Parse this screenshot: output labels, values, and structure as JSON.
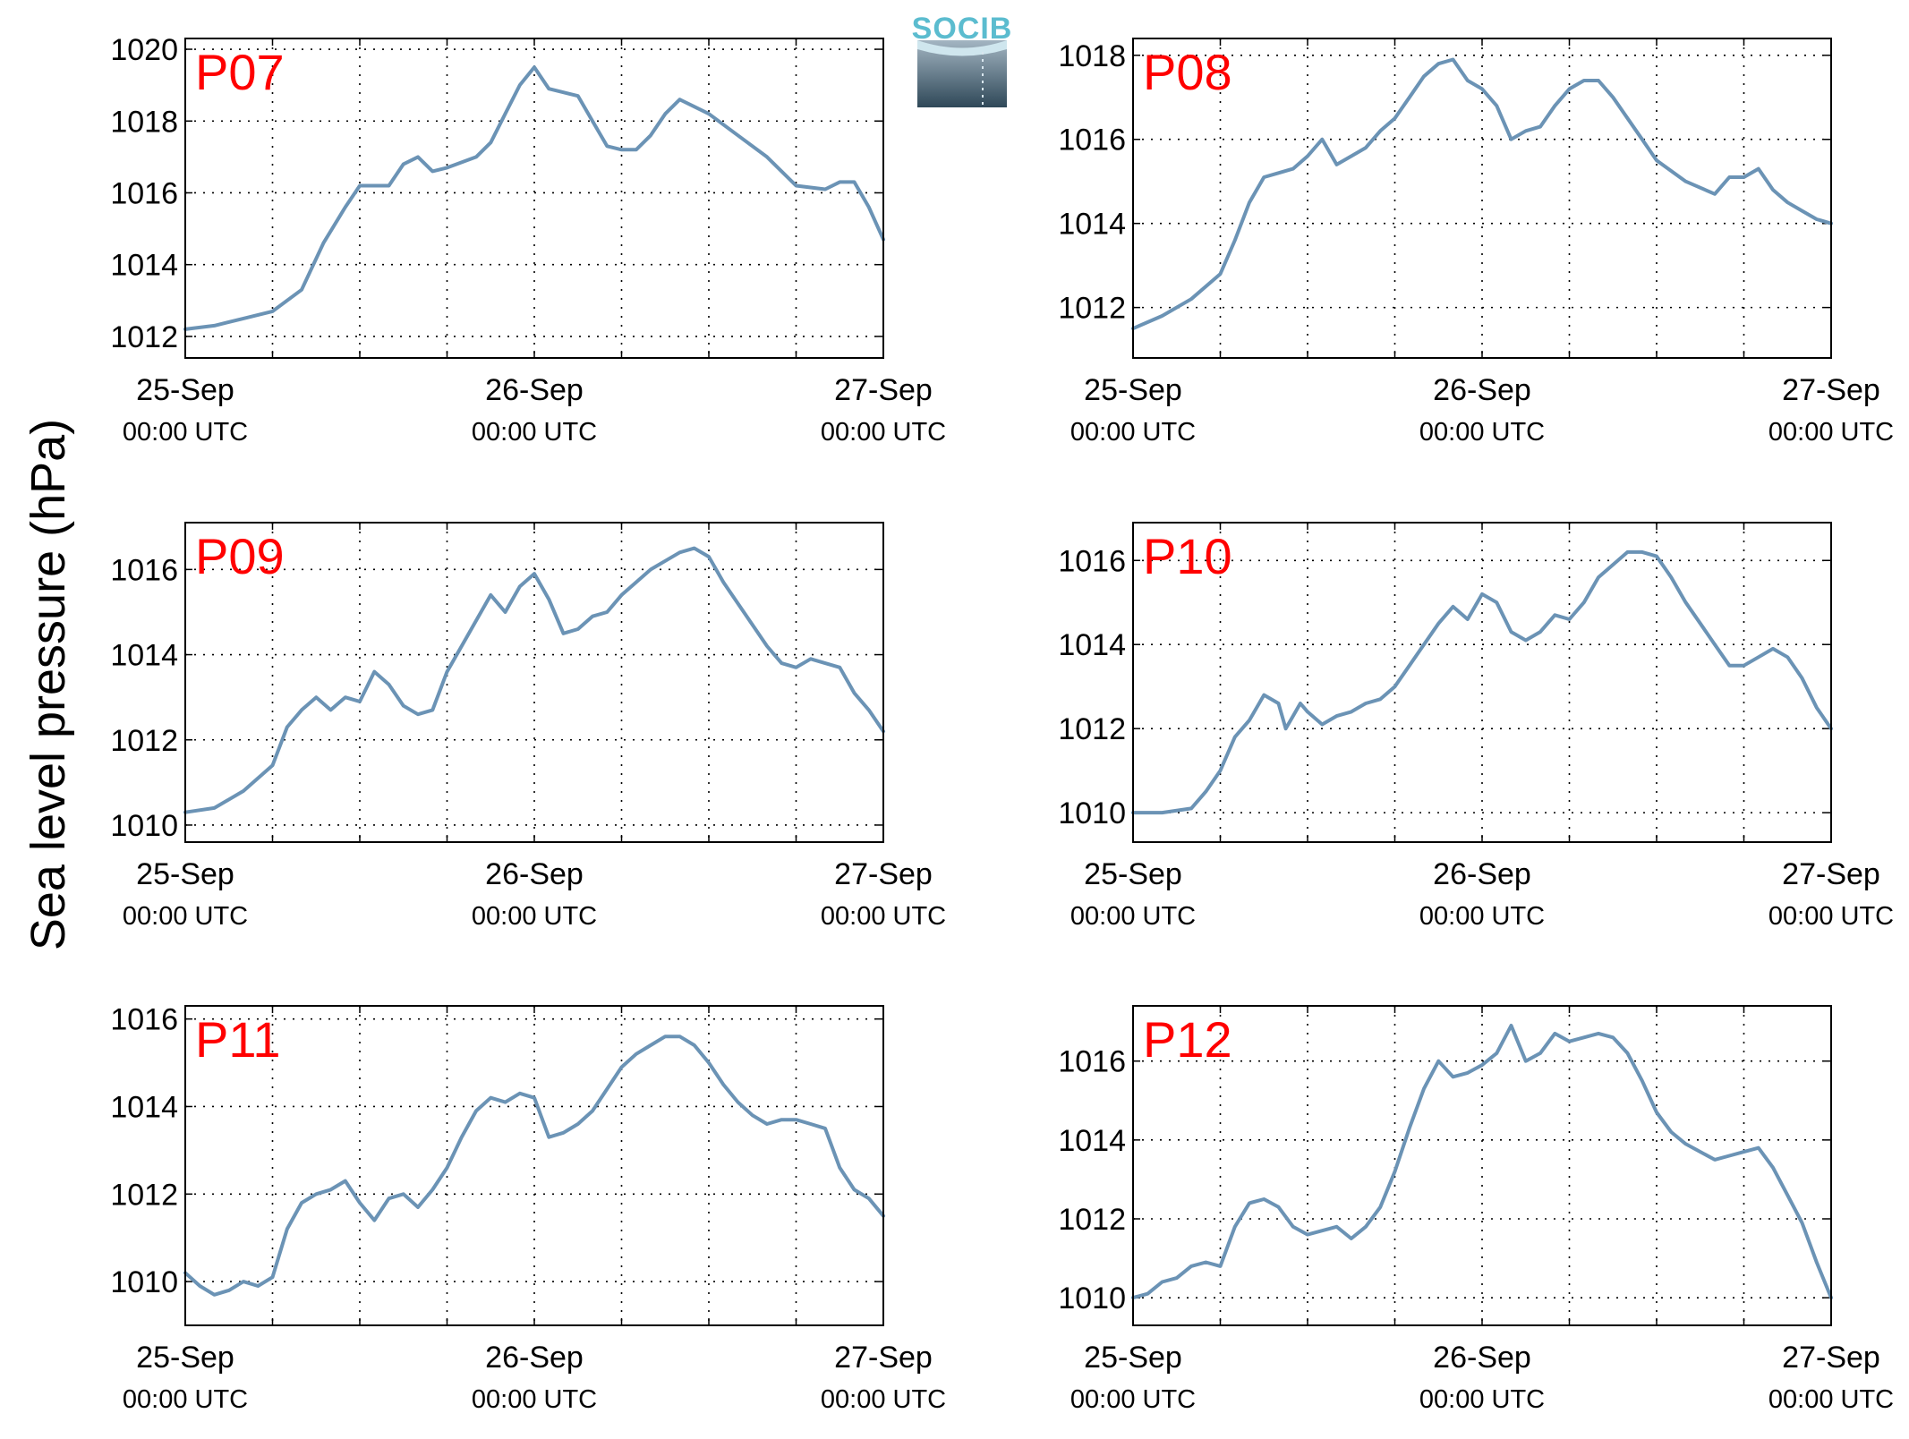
{
  "figure": {
    "ylabel": "Sea level pressure (hPa)",
    "logo_text": "SOCIB",
    "title_color": "#ff0000",
    "line_color": "#6b93b5"
  },
  "chart_data": [
    {
      "type": "line",
      "title": "P07",
      "xlabel": "",
      "ylabel": "Sea level pressure (hPa)",
      "x_ticks": [
        {
          "label": "25-Sep",
          "sub": "00:00 UTC"
        },
        {
          "label": "26-Sep",
          "sub": "00:00 UTC"
        },
        {
          "label": "27-Sep",
          "sub": "00:00 UTC"
        }
      ],
      "y_ticks": [
        1012,
        1014,
        1016,
        1018,
        1020
      ],
      "ylim": [
        1011.4,
        1020.3
      ],
      "grid": true,
      "series": [
        {
          "x": [
            0,
            2,
            4,
            6,
            8,
            9.5,
            11,
            12,
            14,
            15,
            16,
            17,
            18,
            20,
            21,
            22,
            23,
            24,
            25,
            26,
            27,
            28,
            29,
            30,
            31,
            32,
            33,
            34,
            35,
            36,
            38,
            40,
            42,
            44,
            45,
            46,
            47,
            48
          ],
          "y": [
            1012.2,
            1012.3,
            1012.5,
            1012.7,
            1013.3,
            1014.6,
            1015.6,
            1016.2,
            1016.2,
            1016.8,
            1017.0,
            1016.6,
            1016.7,
            1017.0,
            1017.4,
            1018.2,
            1019.0,
            1019.5,
            1018.9,
            1018.8,
            1018.7,
            1018.0,
            1017.3,
            1017.2,
            1017.2,
            1017.6,
            1018.2,
            1018.6,
            1018.4,
            1018.2,
            1017.6,
            1017.0,
            1016.2,
            1016.1,
            1016.3,
            1016.3,
            1015.6,
            1014.7
          ]
        }
      ]
    },
    {
      "type": "line",
      "title": "P08",
      "xlabel": "",
      "ylabel": "Sea level pressure (hPa)",
      "x_ticks": [
        {
          "label": "25-Sep",
          "sub": "00:00 UTC"
        },
        {
          "label": "26-Sep",
          "sub": "00:00 UTC"
        },
        {
          "label": "27-Sep",
          "sub": "00:00 UTC"
        }
      ],
      "y_ticks": [
        1012,
        1014,
        1016,
        1018
      ],
      "ylim": [
        1010.8,
        1018.4
      ],
      "grid": true,
      "series": [
        {
          "x": [
            0,
            2,
            4,
            6,
            7,
            8,
            9,
            10,
            11,
            12,
            13,
            13.5,
            14,
            15,
            16,
            17,
            18,
            19,
            20,
            21,
            22,
            23,
            24,
            25,
            26,
            27,
            28,
            29,
            30,
            31,
            32,
            33,
            34,
            35,
            36,
            38,
            40,
            41,
            42,
            43,
            44,
            45,
            46,
            47,
            48
          ],
          "y": [
            1011.5,
            1011.8,
            1012.2,
            1012.8,
            1013.6,
            1014.5,
            1015.1,
            1015.2,
            1015.3,
            1015.6,
            1016.0,
            1015.7,
            1015.4,
            1015.6,
            1015.8,
            1016.2,
            1016.5,
            1017.0,
            1017.5,
            1017.8,
            1017.9,
            1017.4,
            1017.2,
            1016.8,
            1016.0,
            1016.2,
            1016.3,
            1016.8,
            1017.2,
            1017.4,
            1017.4,
            1017.0,
            1016.5,
            1016.0,
            1015.5,
            1015.0,
            1014.7,
            1015.1,
            1015.1,
            1015.3,
            1014.8,
            1014.5,
            1014.3,
            1014.1,
            1014.0
          ]
        }
      ]
    },
    {
      "type": "line",
      "title": "P09",
      "xlabel": "",
      "ylabel": "Sea level pressure (hPa)",
      "x_ticks": [
        {
          "label": "25-Sep",
          "sub": "00:00 UTC"
        },
        {
          "label": "26-Sep",
          "sub": "00:00 UTC"
        },
        {
          "label": "27-Sep",
          "sub": "00:00 UTC"
        }
      ],
      "y_ticks": [
        1010,
        1012,
        1014,
        1016
      ],
      "ylim": [
        1009.6,
        1017.1
      ],
      "grid": true,
      "series": [
        {
          "x": [
            0,
            2,
            4,
            6,
            7,
            8,
            9,
            10,
            11,
            12,
            13,
            14,
            15,
            16,
            17,
            18,
            19,
            20,
            21,
            22,
            23,
            24,
            25,
            26,
            27,
            28,
            29,
            30,
            31,
            32,
            33,
            34,
            35,
            36,
            37,
            38,
            39,
            40,
            41,
            42,
            43,
            44,
            45,
            46,
            47,
            48
          ],
          "y": [
            1010.3,
            1010.4,
            1010.8,
            1011.4,
            1012.3,
            1012.7,
            1013.0,
            1012.7,
            1013.0,
            1012.9,
            1013.6,
            1013.3,
            1012.8,
            1012.6,
            1012.7,
            1013.6,
            1014.2,
            1014.8,
            1015.4,
            1015.0,
            1015.6,
            1015.9,
            1015.3,
            1014.5,
            1014.6,
            1014.9,
            1015.0,
            1015.4,
            1015.7,
            1016.0,
            1016.2,
            1016.4,
            1016.5,
            1016.3,
            1015.7,
            1015.2,
            1014.7,
            1014.2,
            1013.8,
            1013.7,
            1013.9,
            1013.8,
            1013.7,
            1013.1,
            1012.7,
            1012.2
          ]
        }
      ]
    },
    {
      "type": "line",
      "title": "P10",
      "xlabel": "",
      "ylabel": "Sea level pressure (hPa)",
      "x_ticks": [
        {
          "label": "25-Sep",
          "sub": "00:00 UTC"
        },
        {
          "label": "26-Sep",
          "sub": "00:00 UTC"
        },
        {
          "label": "27-Sep",
          "sub": "00:00 UTC"
        }
      ],
      "y_ticks": [
        1010,
        1012,
        1014,
        1016
      ],
      "ylim": [
        1009.3,
        1016.9
      ],
      "grid": true,
      "series": [
        {
          "x": [
            0,
            2,
            4,
            5,
            6,
            7,
            8,
            9,
            10,
            10.5,
            11,
            11.5,
            12,
            13,
            14,
            15,
            16,
            17,
            18,
            19,
            20,
            21,
            22,
            23,
            24,
            25,
            26,
            27,
            28,
            29,
            30,
            31,
            32,
            33,
            34,
            35,
            36,
            37,
            38,
            39,
            40,
            41,
            42,
            43,
            44,
            45,
            46,
            47,
            48
          ],
          "y": [
            1010.0,
            1010.0,
            1010.1,
            1010.5,
            1011.0,
            1011.8,
            1012.2,
            1012.8,
            1012.6,
            1012.0,
            1012.3,
            1012.6,
            1012.4,
            1012.1,
            1012.3,
            1012.4,
            1012.6,
            1012.7,
            1013.0,
            1013.5,
            1014.0,
            1014.5,
            1014.9,
            1014.6,
            1015.2,
            1015.0,
            1014.3,
            1014.1,
            1014.3,
            1014.7,
            1014.6,
            1015.0,
            1015.6,
            1015.9,
            1016.2,
            1016.2,
            1016.1,
            1015.6,
            1015.0,
            1014.5,
            1014.0,
            1013.5,
            1013.5,
            1013.7,
            1013.9,
            1013.7,
            1013.2,
            1012.5,
            1012.0
          ]
        }
      ]
    },
    {
      "type": "line",
      "title": "P11",
      "xlabel": "",
      "ylabel": "Sea level pressure (hPa)",
      "x_ticks": [
        {
          "label": "25-Sep",
          "sub": "00:00 UTC"
        },
        {
          "label": "26-Sep",
          "sub": "00:00 UTC"
        },
        {
          "label": "27-Sep",
          "sub": "00:00 UTC"
        }
      ],
      "y_ticks": [
        1010,
        1012,
        1014,
        1016
      ],
      "ylim": [
        1009.0,
        1016.3
      ],
      "grid": true,
      "series": [
        {
          "x": [
            0,
            1,
            2,
            3,
            4,
            5,
            6,
            7,
            8,
            9,
            10,
            11,
            12,
            13,
            14,
            15,
            16,
            17,
            18,
            19,
            20,
            21,
            22,
            23,
            24,
            25,
            26,
            27,
            28,
            29,
            30,
            31,
            32,
            33,
            34,
            35,
            36,
            37,
            38,
            39,
            40,
            41,
            42,
            43,
            44,
            45,
            46,
            47,
            48
          ],
          "y": [
            1010.2,
            1009.9,
            1009.7,
            1009.8,
            1010.0,
            1009.9,
            1010.1,
            1011.2,
            1011.8,
            1012.0,
            1012.1,
            1012.3,
            1011.8,
            1011.4,
            1011.9,
            1012.0,
            1011.7,
            1012.1,
            1012.6,
            1013.3,
            1013.9,
            1014.2,
            1014.1,
            1014.3,
            1014.2,
            1013.3,
            1013.4,
            1013.6,
            1013.9,
            1014.4,
            1014.9,
            1015.2,
            1015.4,
            1015.6,
            1015.6,
            1015.4,
            1015.0,
            1014.5,
            1014.1,
            1013.8,
            1013.6,
            1013.7,
            1013.7,
            1013.6,
            1013.5,
            1012.6,
            1012.1,
            1011.9,
            1011.5
          ]
        }
      ]
    },
    {
      "type": "line",
      "title": "P12",
      "xlabel": "",
      "ylabel": "Sea level pressure (hPa)",
      "x_ticks": [
        {
          "label": "25-Sep",
          "sub": "00:00 UTC"
        },
        {
          "label": "26-Sep",
          "sub": "00:00 UTC"
        },
        {
          "label": "27-Sep",
          "sub": "00:00 UTC"
        }
      ],
      "y_ticks": [
        1010,
        1012,
        1014,
        1016
      ],
      "ylim": [
        1009.3,
        1017.4
      ],
      "grid": true,
      "series": [
        {
          "x": [
            0,
            1,
            2,
            3,
            4,
            5,
            6,
            7,
            8,
            9,
            10,
            11,
            12,
            13,
            14,
            15,
            16,
            17,
            18,
            19,
            20,
            21,
            22,
            23,
            24,
            25,
            26,
            27,
            28,
            29,
            30,
            31,
            32,
            33,
            34,
            35,
            36,
            37,
            38,
            39,
            40,
            41,
            42,
            43,
            44,
            45,
            46,
            47,
            48
          ],
          "y": [
            1010.0,
            1010.1,
            1010.4,
            1010.5,
            1010.8,
            1010.9,
            1010.8,
            1011.8,
            1012.4,
            1012.5,
            1012.3,
            1011.8,
            1011.6,
            1011.7,
            1011.8,
            1011.5,
            1011.8,
            1012.3,
            1013.2,
            1014.3,
            1015.3,
            1016.0,
            1015.6,
            1015.7,
            1015.9,
            1016.2,
            1016.9,
            1016.0,
            1016.2,
            1016.7,
            1016.5,
            1016.6,
            1016.7,
            1016.6,
            1016.2,
            1015.5,
            1014.7,
            1014.2,
            1013.9,
            1013.7,
            1013.5,
            1013.6,
            1013.7,
            1013.8,
            1013.3,
            1012.6,
            1011.9,
            1010.9,
            1010.0
          ]
        }
      ]
    }
  ]
}
